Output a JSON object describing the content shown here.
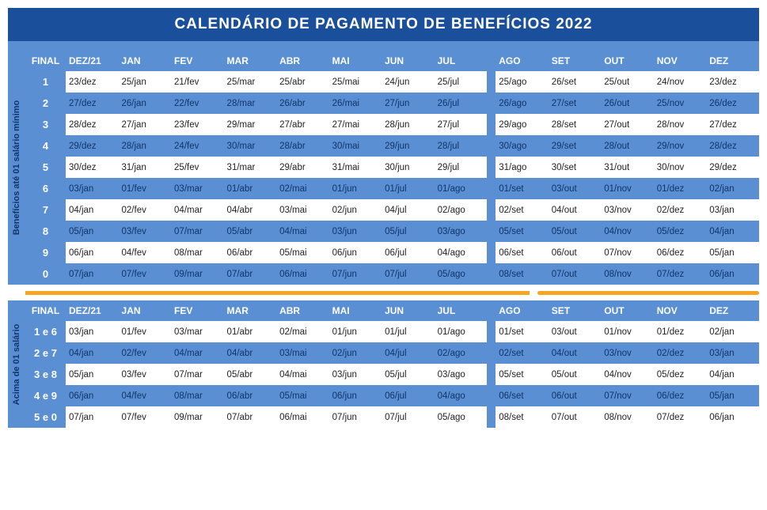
{
  "title": "CALENDÁRIO DE PAGAMENTO DE BENEFÍCIOS 2022",
  "headers": [
    "FINAL",
    "DEZ/21",
    "JAN",
    "FEV",
    "MAR",
    "ABR",
    "MAI",
    "JUN",
    "JUL",
    "AGO",
    "SET",
    "OUT",
    "NOV",
    "DEZ"
  ],
  "section1": {
    "label": "Benefícios até 01 salário mínimo",
    "rows": [
      {
        "final": "1",
        "cells": [
          "23/dez",
          "25/jan",
          "21/fev",
          "25/mar",
          "25/abr",
          "25/mai",
          "24/jun",
          "25/jul",
          "25/ago",
          "26/set",
          "25/out",
          "24/nov",
          "23/dez"
        ]
      },
      {
        "final": "2",
        "cells": [
          "27/dez",
          "26/jan",
          "22/fev",
          "28/mar",
          "26/abr",
          "26/mai",
          "27/jun",
          "26/jul",
          "26/ago",
          "27/set",
          "26/out",
          "25/nov",
          "26/dez"
        ]
      },
      {
        "final": "3",
        "cells": [
          "28/dez",
          "27/jan",
          "23/fev",
          "29/mar",
          "27/abr",
          "27/mai",
          "28/jun",
          "27/jul",
          "29/ago",
          "28/set",
          "27/out",
          "28/nov",
          "27/dez"
        ]
      },
      {
        "final": "4",
        "cells": [
          "29/dez",
          "28/jan",
          "24/fev",
          "30/mar",
          "28/abr",
          "30/mai",
          "29/jun",
          "28/jul",
          "30/ago",
          "29/set",
          "28/out",
          "29/nov",
          "28/dez"
        ]
      },
      {
        "final": "5",
        "cells": [
          "30/dez",
          "31/jan",
          "25/fev",
          "31/mar",
          "29/abr",
          "31/mai",
          "30/jun",
          "29/jul",
          "31/ago",
          "30/set",
          "31/out",
          "30/nov",
          "29/dez"
        ]
      },
      {
        "final": "6",
        "cells": [
          "03/jan",
          "01/fev",
          "03/mar",
          "01/abr",
          "02/mai",
          "01/jun",
          "01/jul",
          "01/ago",
          "01/set",
          "03/out",
          "01/nov",
          "01/dez",
          "02/jan"
        ]
      },
      {
        "final": "7",
        "cells": [
          "04/jan",
          "02/fev",
          "04/mar",
          "04/abr",
          "03/mai",
          "02/jun",
          "04/jul",
          "02/ago",
          "02/set",
          "04/out",
          "03/nov",
          "02/dez",
          "03/jan"
        ]
      },
      {
        "final": "8",
        "cells": [
          "05/jan",
          "03/fev",
          "07/mar",
          "05/abr",
          "04/mai",
          "03/jun",
          "05/jul",
          "03/ago",
          "05/set",
          "05/out",
          "04/nov",
          "05/dez",
          "04/jan"
        ]
      },
      {
        "final": "9",
        "cells": [
          "06/jan",
          "04/fev",
          "08/mar",
          "06/abr",
          "05/mai",
          "06/jun",
          "06/jul",
          "04/ago",
          "06/set",
          "06/out",
          "07/nov",
          "06/dez",
          "05/jan"
        ]
      },
      {
        "final": "0",
        "cells": [
          "07/jan",
          "07/fev",
          "09/mar",
          "07/abr",
          "06/mai",
          "07/jun",
          "07/jul",
          "05/ago",
          "08/set",
          "07/out",
          "08/nov",
          "07/dez",
          "06/jan"
        ]
      }
    ]
  },
  "section2": {
    "label": "Acima de 01 salário",
    "rows": [
      {
        "final": "1 e 6",
        "cells": [
          "03/jan",
          "01/fev",
          "03/mar",
          "01/abr",
          "02/mai",
          "01/jun",
          "01/jul",
          "01/ago",
          "01/set",
          "03/out",
          "01/nov",
          "01/dez",
          "02/jan"
        ]
      },
      {
        "final": "2 e 7",
        "cells": [
          "04/jan",
          "02/fev",
          "04/mar",
          "04/abr",
          "03/mai",
          "02/jun",
          "04/jul",
          "02/ago",
          "02/set",
          "04/out",
          "03/nov",
          "02/dez",
          "03/jan"
        ]
      },
      {
        "final": "3 e 8",
        "cells": [
          "05/jan",
          "03/fev",
          "07/mar",
          "05/abr",
          "04/mai",
          "03/jun",
          "05/jul",
          "03/ago",
          "05/set",
          "05/out",
          "04/nov",
          "05/dez",
          "04/jan"
        ]
      },
      {
        "final": "4 e 9",
        "cells": [
          "06/jan",
          "04/fev",
          "08/mar",
          "06/abr",
          "05/mai",
          "06/jun",
          "06/jul",
          "04/ago",
          "06/set",
          "06/out",
          "07/nov",
          "06/dez",
          "05/jan"
        ]
      },
      {
        "final": "5 e 0",
        "cells": [
          "07/jan",
          "07/fev",
          "09/mar",
          "07/abr",
          "06/mai",
          "07/jun",
          "07/jul",
          "05/ago",
          "08/set",
          "07/out",
          "08/nov",
          "07/dez",
          "06/jan"
        ]
      }
    ]
  },
  "colors": {
    "title_bg": "#1a4f9c",
    "table_bg": "#5a8fd4",
    "accent": "#f5a623",
    "row_odd_bg": "#ffffff",
    "row_even_bg": "#5a8fd4",
    "header_text": "#ffffff",
    "final_col_text": "#ffffff",
    "cell_text_dark": "#10356a"
  },
  "layout": {
    "gap_after_col": 8,
    "col_widths": {
      "final": 46,
      "data": 60,
      "gap": 10
    }
  }
}
